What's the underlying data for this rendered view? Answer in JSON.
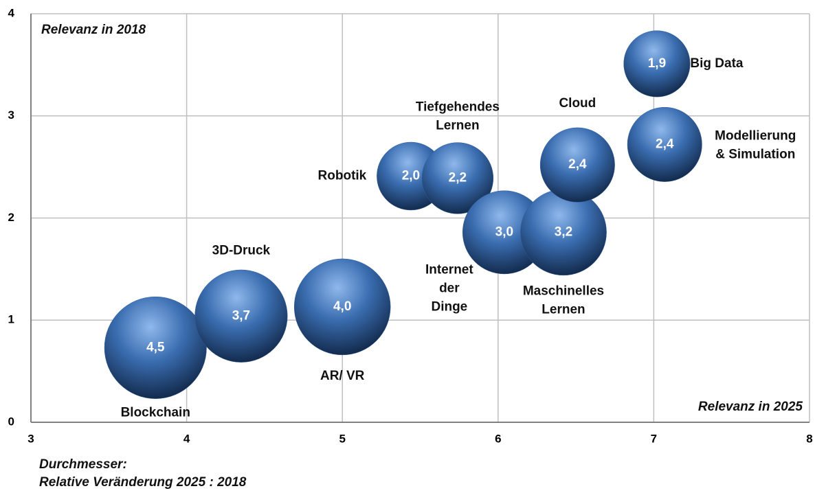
{
  "chart_data": {
    "type": "bubble",
    "x": [
      3.8,
      4.35,
      5.0,
      5.44,
      5.74,
      6.04,
      6.42,
      6.51,
      7.02,
      7.07
    ],
    "y": [
      0.73,
      1.04,
      1.13,
      2.41,
      2.39,
      1.86,
      1.86,
      2.52,
      3.51,
      2.72
    ],
    "sizes": [
      4.5,
      3.7,
      4.0,
      2.0,
      2.2,
      3.0,
      3.2,
      2.4,
      1.9,
      2.4
    ],
    "value_labels": [
      "4,5",
      "3,7",
      "4,0",
      "2,0",
      "2,2",
      "3,0",
      "3,2",
      "2,4",
      "1,9",
      "2,4"
    ],
    "labels": [
      [
        "Blockchain"
      ],
      [
        "3D-Druck"
      ],
      [
        "AR/ VR"
      ],
      [
        "Robotik"
      ],
      [
        "Tiefgehendes",
        "Lernen"
      ],
      [
        "Internet",
        "der",
        "Dinge"
      ],
      [
        "Maschinelles",
        "Lernen"
      ],
      [
        "Cloud"
      ],
      [
        "Big Data"
      ],
      [
        "Modellierung",
        "& Simulation"
      ]
    ],
    "color": "#2f5f9e",
    "xlim": [
      3,
      8
    ],
    "xticks": [
      3,
      4,
      5,
      6,
      7,
      8
    ],
    "ylim": [
      0,
      4
    ],
    "yticks": [
      0,
      1,
      2,
      3,
      4
    ],
    "grid": true,
    "y_axis_annotation": "Relevanz in 2018",
    "x_axis_annotation": "Relevanz in 2025",
    "size_note": [
      "Durchmesser:",
      "Relative  Veränderung 2025 : 2018"
    ]
  }
}
